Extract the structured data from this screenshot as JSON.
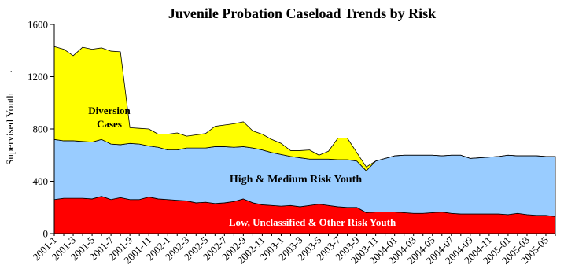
{
  "chart_data": {
    "type": "area",
    "stacked": true,
    "title": "Juvenile Probation Caseload Trends by Risk",
    "xlabel": "",
    "ylabel": "Supervised Youth",
    "ylabel_suffix": ".",
    "ylim": [
      0,
      1600
    ],
    "yticks": [
      0,
      400,
      800,
      1200,
      1600
    ],
    "grid": false,
    "legend": "none",
    "x": [
      "2001-1",
      "2001-2",
      "2001-3",
      "2001-4",
      "2001-5",
      "2001-6",
      "2001-7",
      "2001-8",
      "2001-9",
      "2001-10",
      "2001-11",
      "2001-12",
      "2002-1",
      "2002-2",
      "2002-3",
      "2002-4",
      "2002-5",
      "2002-6",
      "2002-7",
      "2002-8",
      "2002-9",
      "2002-10",
      "2002-11",
      "2002-12",
      "2003-1",
      "2003-2",
      "2003-3",
      "2003-4",
      "2003-5",
      "2003-6",
      "2003-7",
      "2003-8",
      "2003-9",
      "2003-10",
      "2003-11",
      "2003-12",
      "2004-01",
      "2004-02",
      "2004-03",
      "2004-04",
      "2004-05",
      "2004-06",
      "2004-07",
      "2004-08",
      "2004-09",
      "2004-10",
      "2004-11",
      "2004-12",
      "2005-01",
      "2005-02",
      "2005-03",
      "2005-04",
      "2005-05",
      "2005-06"
    ],
    "x_tick_labels": [
      "2001-1",
      "2001-3",
      "2001-5",
      "2001-7",
      "2001-9",
      "2001-11",
      "2002-1",
      "2002-3",
      "2002-5",
      "2002-7",
      "2002-9",
      "2002-11",
      "2003-1",
      "2003-3",
      "2003-5",
      "2003-7",
      "2003-9",
      "2003-11",
      "2004-01",
      "2004-03",
      "2004-05",
      "2004-07",
      "2004-09",
      "2004-11",
      "2005-01",
      "2005-03",
      "2005-05"
    ],
    "series": [
      {
        "name": "Low, Unclassified & Other Risk Youth",
        "color": "#ff0000",
        "values": [
          260,
          270,
          270,
          270,
          265,
          285,
          260,
          275,
          260,
          260,
          280,
          265,
          260,
          255,
          250,
          235,
          240,
          230,
          235,
          245,
          265,
          235,
          220,
          215,
          210,
          215,
          205,
          215,
          225,
          215,
          205,
          200,
          200,
          160,
          165,
          165,
          165,
          160,
          155,
          155,
          160,
          165,
          155,
          150,
          150,
          150,
          150,
          150,
          145,
          155,
          145,
          140,
          140,
          130
        ]
      },
      {
        "name": "High & Medium Risk Youth",
        "color": "#99ccff",
        "values": [
          460,
          440,
          440,
          435,
          435,
          435,
          425,
          405,
          430,
          425,
          390,
          395,
          380,
          385,
          405,
          420,
          415,
          435,
          430,
          415,
          400,
          420,
          420,
          405,
          395,
          375,
          375,
          355,
          345,
          355,
          360,
          365,
          355,
          320,
          390,
          410,
          430,
          440,
          445,
          445,
          440,
          430,
          445,
          450,
          425,
          430,
          435,
          440,
          455,
          440,
          450,
          455,
          450,
          460
        ]
      },
      {
        "name": "Diversion Cases",
        "color": "#ffff00",
        "values": [
          710,
          700,
          650,
          720,
          710,
          700,
          710,
          710,
          120,
          120,
          130,
          100,
          120,
          130,
          90,
          100,
          110,
          155,
          165,
          180,
          190,
          130,
          120,
          100,
          85,
          45,
          55,
          70,
          30,
          60,
          165,
          165,
          65,
          30,
          0,
          0,
          0,
          0,
          0,
          0,
          0,
          0,
          0,
          0,
          0,
          0,
          0,
          0,
          0,
          0,
          0,
          0,
          0,
          0
        ]
      }
    ],
    "annotations": {
      "diversion_line1": "Diversion",
      "diversion_line2": "Cases",
      "high_medium": "High & Medium Risk Youth",
      "low": "Low, Unclassified & Other Risk Youth"
    }
  }
}
